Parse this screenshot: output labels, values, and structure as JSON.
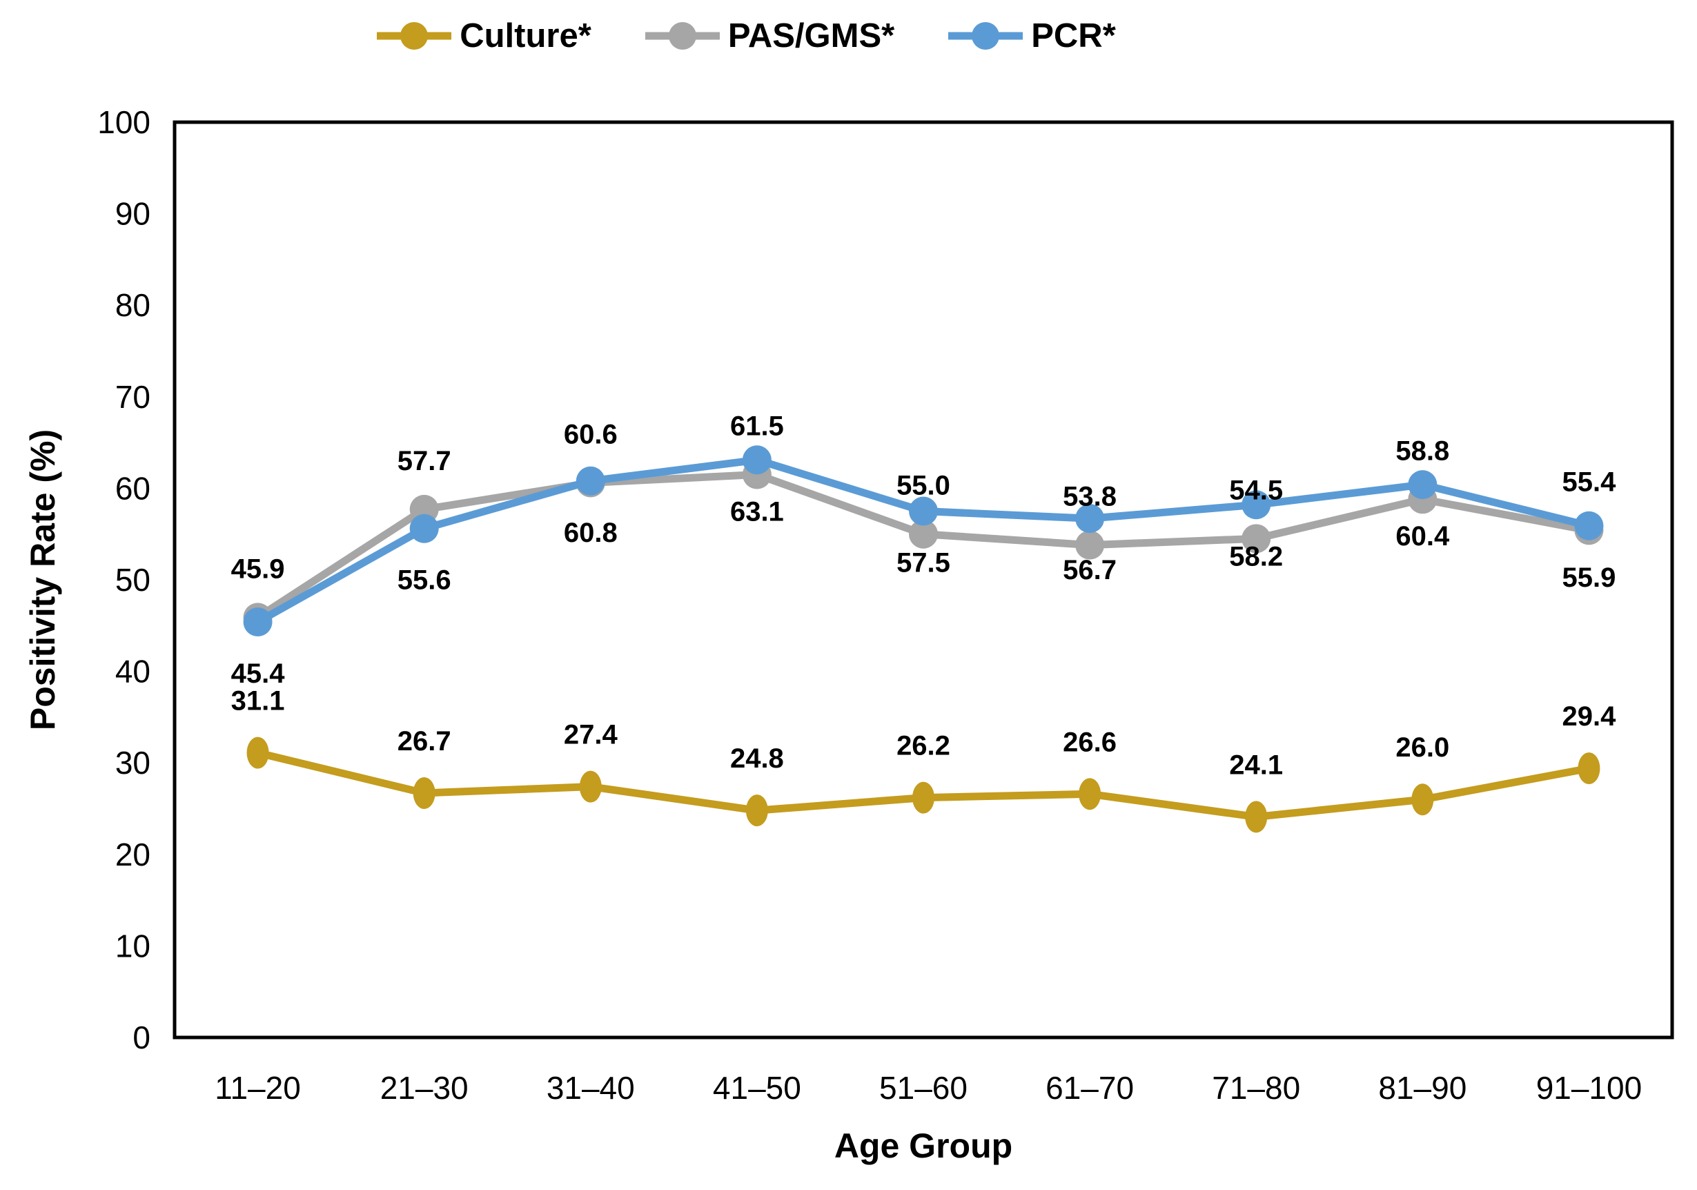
{
  "figure": {
    "background": "#FFFFFF",
    "text_color": "#000000",
    "axis_line_color": "#000000"
  },
  "chart_data": {
    "type": "line",
    "title": "",
    "xlabel": "Age Group",
    "ylabel": "Positivity Rate (%)",
    "ylim": [
      0,
      100
    ],
    "y_ticks": [
      0,
      10,
      20,
      30,
      40,
      50,
      60,
      70,
      80,
      90,
      100
    ],
    "grid": false,
    "legend_position": "top-center",
    "data_labels_shown": true,
    "categories": [
      "11–20",
      "21–30",
      "31–40",
      "41–50",
      "51–60",
      "61–70",
      "71–80",
      "81–90",
      "91–100"
    ],
    "series": [
      {
        "name": "Culture*",
        "color": "#C49C1E",
        "label_dy": -75,
        "values": [
          31.1,
          26.7,
          27.4,
          24.8,
          26.2,
          26.6,
          24.1,
          26.0,
          29.4
        ]
      },
      {
        "name": "PAS/GMS*",
        "color": "#A6A6A6",
        "label_dy": -70,
        "values": [
          45.9,
          57.7,
          60.6,
          61.5,
          55.0,
          53.8,
          54.5,
          58.8,
          55.4
        ]
      },
      {
        "name": "PCR*",
        "color": "#5B9BD5",
        "label_dy": 75,
        "values": [
          45.4,
          55.6,
          60.8,
          63.1,
          57.5,
          56.7,
          58.2,
          60.4,
          55.9
        ]
      }
    ]
  }
}
